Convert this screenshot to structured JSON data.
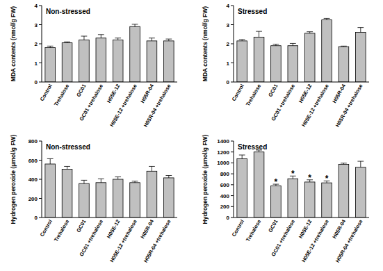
{
  "chart_data": [
    {
      "type": "bar",
      "title": "Non-stressed",
      "y_label": "MDA contents (nmol/g FW)",
      "categories": [
        "Control",
        "Trehalose",
        "GC01",
        "GC01 +trehalose",
        "H05E-12",
        "H05E-12 +trehalose",
        "H05R-04",
        "H05R-04 +trehalose"
      ],
      "values": [
        1.8,
        2.05,
        2.2,
        2.3,
        2.2,
        2.9,
        2.15,
        2.15
      ],
      "errors": [
        0.08,
        0.05,
        0.2,
        0.18,
        0.1,
        0.12,
        0.15,
        0.1
      ],
      "color": "#c0c0c0",
      "ylim": [
        0,
        4
      ],
      "yticks": [
        0,
        1,
        2,
        3,
        4
      ]
    },
    {
      "type": "bar",
      "title": "Stressed",
      "y_label": "MDA contents (nmol/g FW)",
      "categories": [
        "Control",
        "Trehalose",
        "GC01",
        "GC01 +trehalose",
        "H05E-12",
        "H05E-12 +trehalose",
        "H05R-04",
        "H05R-04 +trehalose"
      ],
      "values": [
        2.15,
        2.35,
        1.9,
        1.9,
        2.55,
        3.25,
        1.85,
        2.6
      ],
      "errors": [
        0.07,
        0.3,
        0.08,
        0.12,
        0.08,
        0.08,
        0.03,
        0.25
      ],
      "color": "#c0c0c0",
      "ylim": [
        0,
        4
      ],
      "yticks": [
        0,
        1,
        2,
        3,
        4
      ]
    },
    {
      "type": "bar",
      "title": "Non-stressed",
      "y_label": "Hydrogen peroxide (μmol/g FW)",
      "categories": [
        "Control",
        "Trehalose",
        "GC01",
        "GC01 +trehalose",
        "H05E-12",
        "H05E-12 +trehalose",
        "H05R-04",
        "H05R-04 +trehalose"
      ],
      "values": [
        560,
        505,
        355,
        365,
        400,
        365,
        485,
        415
      ],
      "errors": [
        55,
        30,
        35,
        40,
        25,
        15,
        50,
        25
      ],
      "color": "#c0c0c0",
      "ylim": [
        0,
        800
      ],
      "yticks": [
        0,
        200,
        400,
        600,
        800
      ]
    },
    {
      "type": "bar",
      "title": "Stressed",
      "y_label": "Hydrogen peroxide (μmol/g FW)",
      "categories": [
        "Control",
        "Trehalose",
        "GC01",
        "GC01 +trehalose",
        "H05E-12",
        "H05E-12 +trehalose",
        "H05R-04",
        "H05R-04 +trehalose"
      ],
      "values": [
        1075,
        1200,
        580,
        710,
        650,
        635,
        975,
        920
      ],
      "errors": [
        70,
        35,
        30,
        50,
        40,
        35,
        20,
        110
      ],
      "color": "#c0c0c0",
      "ylim": [
        0,
        1400
      ],
      "yticks": [
        0,
        200,
        400,
        600,
        800,
        1000,
        1200,
        1400
      ],
      "annotations": [
        {
          "category": "GC01",
          "text": "*"
        },
        {
          "category": "GC01 +trehalose",
          "text": "*"
        },
        {
          "category": "H05E-12",
          "text": "*"
        },
        {
          "category": "H05E-12 +trehalose",
          "text": "*"
        }
      ]
    }
  ]
}
